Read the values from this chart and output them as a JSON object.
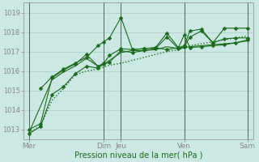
{
  "xlabel": "Pression niveau de la mer( hPa )",
  "bg_color": "#cce8e4",
  "grid_color": "#aacccc",
  "line_color": "#1a6b1a",
  "ylim": [
    1012.5,
    1019.5
  ],
  "yticks": [
    1013,
    1014,
    1015,
    1016,
    1017,
    1018,
    1019
  ],
  "xlim": [
    0,
    20
  ],
  "xtick_labels": [
    "Mer",
    "Dim",
    "Jeu",
    "Ven",
    "Sam"
  ],
  "xtick_positions": [
    0.5,
    7,
    8.5,
    14,
    19.5
  ],
  "vline_positions": [
    0.5,
    7,
    8.5,
    14,
    19.5
  ],
  "vline_color": "#556655",
  "lines": [
    {
      "x": [
        0.5,
        1.5,
        2.5,
        3.5,
        4.5,
        5.5,
        6.5,
        7.0,
        7.5,
        8.5,
        9.5,
        10.5,
        11.5,
        12.5,
        13.5,
        14.0,
        14.5,
        15.5,
        16.5,
        17.5,
        18.5,
        19.5
      ],
      "y": [
        1012.8,
        1013.2,
        1014.5,
        1015.1,
        1015.8,
        1016.0,
        1016.1,
        1016.2,
        1016.3,
        1016.4,
        1016.55,
        1016.7,
        1016.85,
        1017.0,
        1017.1,
        1017.2,
        1017.3,
        1017.4,
        1017.5,
        1017.6,
        1017.7,
        1017.8
      ],
      "style": "dotted",
      "marker": null,
      "lw": 1.0,
      "ms": 0
    },
    {
      "x": [
        1.5,
        2.5,
        3.5,
        4.5,
        5.5,
        6.5,
        7.0,
        7.5,
        8.5,
        9.5,
        10.5,
        11.5,
        12.5,
        13.5,
        14.0,
        14.5,
        15.5,
        16.5,
        17.5,
        18.5,
        19.5
      ],
      "y": [
        1015.1,
        1015.7,
        1016.1,
        1016.4,
        1016.7,
        1017.3,
        1017.5,
        1017.7,
        1018.75,
        1017.1,
        1017.15,
        1017.2,
        1017.1,
        1017.2,
        1017.85,
        1017.2,
        1017.25,
        1017.3,
        1017.35,
        1017.45,
        1017.6
      ],
      "style": "solid",
      "marker": "D",
      "lw": 0.8,
      "ms": 2.5
    },
    {
      "x": [
        0.5,
        1.5,
        2.5,
        3.5,
        4.5,
        5.5,
        6.5,
        7.0,
        7.5,
        8.5,
        9.5,
        10.5,
        11.5,
        12.5,
        13.5,
        14.0,
        14.5,
        15.5,
        16.5,
        17.5,
        18.5,
        19.5
      ],
      "y": [
        1013.0,
        1013.3,
        1015.65,
        1016.05,
        1016.35,
        1016.85,
        1016.25,
        1016.4,
        1016.8,
        1017.15,
        1017.1,
        1017.15,
        1017.2,
        1017.95,
        1017.2,
        1017.3,
        1018.05,
        1018.15,
        1017.45,
        1018.2,
        1018.2,
        1018.2
      ],
      "style": "solid",
      "marker": "D",
      "lw": 0.8,
      "ms": 2.5
    },
    {
      "x": [
        0.5,
        1.5,
        2.5,
        3.5,
        4.5,
        5.5,
        6.5,
        7.0,
        7.5,
        8.5,
        9.5,
        10.5,
        11.5,
        12.5,
        13.5,
        14.0,
        14.5,
        15.5,
        16.5,
        17.5,
        18.5,
        19.5
      ],
      "y": [
        1012.8,
        1013.15,
        1014.8,
        1015.2,
        1015.85,
        1016.25,
        1016.15,
        1016.35,
        1016.45,
        1017.05,
        1016.95,
        1017.05,
        1017.15,
        1017.75,
        1017.15,
        1017.25,
        1017.75,
        1018.05,
        1017.45,
        1017.65,
        1017.7,
        1017.7
      ],
      "style": "solid",
      "marker": "D",
      "lw": 0.8,
      "ms": 2.5
    },
    {
      "x": [
        0.5,
        2.5,
        3.5,
        4.5,
        5.5,
        6.5,
        7.0,
        7.5,
        8.5,
        9.5,
        10.5,
        11.5,
        12.5,
        13.5,
        14.0,
        14.5,
        15.5,
        16.5,
        17.5,
        18.5,
        19.5
      ],
      "y": [
        1012.85,
        1015.55,
        1015.95,
        1016.25,
        1016.65,
        1016.25,
        1016.35,
        1016.55,
        1016.95,
        1017.05,
        1017.05,
        1017.1,
        1017.25,
        1017.15,
        1017.2,
        1017.25,
        1017.3,
        1017.35,
        1017.4,
        1017.45,
        1017.55
      ],
      "style": "solid",
      "marker": null,
      "lw": 0.8,
      "ms": 0
    }
  ]
}
